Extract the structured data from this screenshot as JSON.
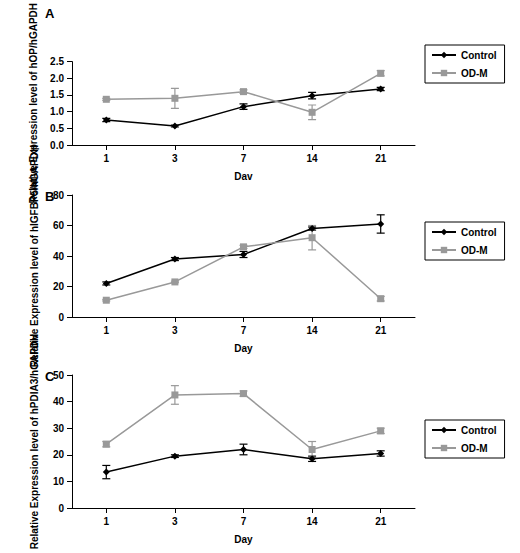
{
  "chart_data": [
    {
      "type": "line",
      "title": "A",
      "x_label": "Dav",
      "y_label": "Relative Expression level of hOP/hGAPDH",
      "categories": [
        "1",
        "3",
        "7",
        "14",
        "21"
      ],
      "ylim": [
        0,
        2.5
      ],
      "yticks": [
        {
          "value": 0,
          "label": "0.0"
        },
        0.5,
        {
          "value": 1,
          "label": "1.0"
        },
        1.5,
        {
          "value": 2,
          "label": "2.0"
        },
        2.5
      ],
      "grid": false,
      "legend": "right",
      "series": [
        {
          "name": "Control",
          "color": "#000000",
          "marker": "diamond",
          "line_style": "solid",
          "values": [
            0.75,
            0.57,
            1.15,
            1.48,
            1.68
          ],
          "errors": [
            0.05,
            0.03,
            0.08,
            0.1,
            0.05
          ]
        },
        {
          "name": "OD-M",
          "color": "#999999",
          "marker": "square",
          "line_style": "solid",
          "values": [
            1.37,
            1.4,
            1.6,
            0.98,
            2.15
          ],
          "errors": [
            0.03,
            0.3,
            0.05,
            0.22,
            0.08
          ]
        }
      ]
    },
    {
      "type": "line",
      "title": "B",
      "x_label": "Day",
      "y_label": "Relative Expression level of hIGFBP5/hGAPDH",
      "categories": [
        "1",
        "3",
        "7",
        "14",
        "21"
      ],
      "ylim": [
        0,
        80
      ],
      "yticks": [
        0,
        20,
        40,
        60,
        80
      ],
      "grid": false,
      "legend": "right",
      "series": [
        {
          "name": "Control",
          "color": "#000000",
          "marker": "diamond",
          "line_style": "solid",
          "values": [
            22,
            38,
            41,
            58,
            61
          ],
          "errors": [
            1,
            1,
            2,
            1,
            6
          ]
        },
        {
          "name": "OD-M",
          "color": "#999999",
          "marker": "square",
          "line_style": "solid",
          "values": [
            11,
            23,
            46,
            52,
            12
          ],
          "errors": [
            0.5,
            0.5,
            1,
            8,
            1.5
          ]
        }
      ]
    },
    {
      "type": "line",
      "title": "C",
      "x_label": "Day",
      "y_label": "Relative Expression level of hPDIA3/hGAPDH",
      "categories": [
        "1",
        "3",
        "7",
        "14",
        "21"
      ],
      "ylim": [
        0,
        50
      ],
      "yticks": [
        0,
        10,
        20,
        30,
        40,
        50
      ],
      "grid": false,
      "legend": "right",
      "series": [
        {
          "name": "Control",
          "color": "#000000",
          "marker": "diamond",
          "line_style": "solid",
          "values": [
            13.5,
            19.5,
            22,
            18.5,
            20.5
          ],
          "errors": [
            2.5,
            0.5,
            2,
            1,
            1
          ]
        },
        {
          "name": "OD-M",
          "color": "#999999",
          "marker": "square",
          "line_style": "solid",
          "values": [
            24,
            42.5,
            43,
            22,
            29
          ],
          "errors": [
            1,
            3.5,
            1,
            3,
            1
          ]
        }
      ]
    }
  ]
}
